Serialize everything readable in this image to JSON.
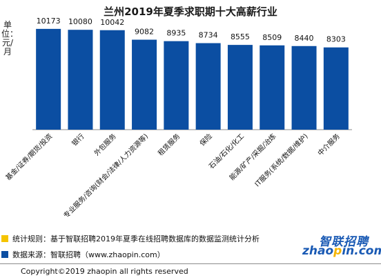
{
  "chart_data": {
    "type": "bar",
    "title": "兰州2019年夏季求职期十大高薪行业",
    "ylabel": "单位：元/月",
    "ylim": [
      0,
      11000
    ],
    "grid": false,
    "categories": [
      "基金/证券/期货/投资",
      "银行",
      "外包服务",
      "专业服务/咨询(财会/法律/人力资源等)",
      "租赁服务",
      "保险",
      "石油/石化/化工",
      "能源/矿产/采掘/冶炼",
      "IT服务(系统/数据/维护)",
      "中介服务"
    ],
    "values": [
      10173,
      10080,
      10042,
      9082,
      8935,
      8734,
      8555,
      8509,
      8440,
      8303
    ],
    "value_labels": [
      "10173",
      "10080",
      "10042",
      "9082",
      "8935",
      "8734",
      "8555",
      "8509",
      "8440",
      "8303"
    ],
    "bar_color": "#0b4ea2"
  },
  "footer": {
    "rule_text": "统计规则：基于智联招聘2019年夏季在线招聘数据库的数据监测统计分析",
    "source_text": "数据来源：智联招聘（www.zhaopin.com）",
    "rule_color": "#f5c400",
    "source_color": "#0b4ea2",
    "copyright": "Copyright©2019 zhaopin all rights reserved"
  },
  "logo": {
    "cn": "智联招聘",
    "en_prefix": "zhao",
    "en_dot": "p",
    "en_suffix": "in.com"
  }
}
